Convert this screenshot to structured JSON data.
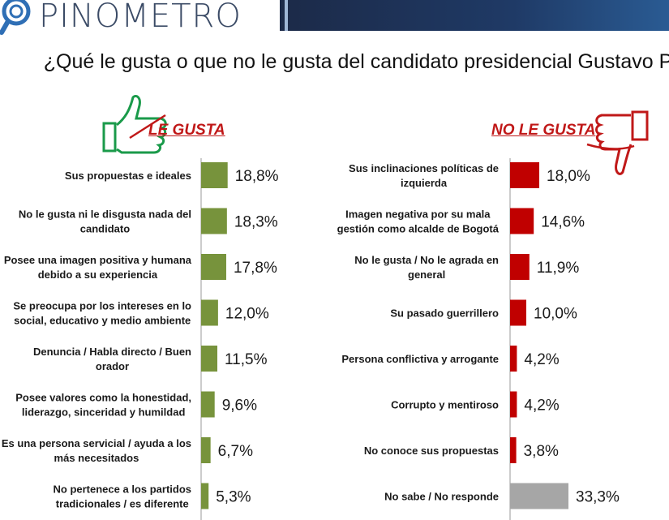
{
  "logo": {
    "text": "PINOMETRO",
    "icon": "magnifier-icon"
  },
  "title": "¿Qué le gusta o que no le gusta del candidato presidencial Gustavo Petro?",
  "headers": {
    "left": "LE GUSTA",
    "right": "NO LE GUSTA"
  },
  "colors": {
    "left_bar": "#77933c",
    "right_bar": "#c00000",
    "no_response_bar": "#a6a6a6",
    "header": "#c01818",
    "thumb_up": "#1a9a4a",
    "thumb_down": "#c01818"
  },
  "chart_data": [
    {
      "type": "bar",
      "orientation": "horizontal",
      "title": "LE GUSTA",
      "unit": "%",
      "categories": [
        [
          "Sus propuestas e ideales"
        ],
        [
          "No le gusta ni le disgusta nada del",
          "candidato"
        ],
        [
          "Posee una imagen positiva y humana",
          "debido a su experiencia"
        ],
        [
          "Se preocupa por los intereses en lo",
          "social, educativo y medio ambiente"
        ],
        [
          "Denuncia / Habla directo / Buen",
          "orador"
        ],
        [
          "Posee valores como la honestidad,",
          "liderazgo, sinceridad y humildad"
        ],
        [
          "Es una persona servicial / ayuda a los",
          "más necesitados"
        ],
        [
          "No pertenece a los partidos",
          "tradicionales / es diferente"
        ]
      ],
      "values": [
        18.8,
        18.3,
        17.8,
        12.0,
        11.5,
        9.6,
        6.7,
        5.3
      ],
      "labels": [
        "18,8%",
        "18,3%",
        "17,8%",
        "12,0%",
        "11,5%",
        "9,6%",
        "6,7%",
        "5,3%"
      ]
    },
    {
      "type": "bar",
      "orientation": "horizontal",
      "title": "NO LE GUSTA",
      "unit": "%",
      "categories": [
        [
          "Sus inclinaciones políticas de",
          "izquierda"
        ],
        [
          "Imagen negativa por su mala",
          "gestión como alcalde de Bogotá"
        ],
        [
          "No le gusta / No le agrada en",
          "general"
        ],
        [
          "Su pasado guerrillero"
        ],
        [
          "Persona conflictiva y arrogante"
        ],
        [
          "Corrupto y mentiroso"
        ],
        [
          "No conoce sus propuestas"
        ],
        [
          "No sabe / No responde"
        ]
      ],
      "values": [
        18.0,
        14.6,
        11.9,
        10.0,
        4.2,
        4.2,
        3.8,
        33.3
      ],
      "labels": [
        "18,0%",
        "14,6%",
        "11,9%",
        "10,0%",
        "4,2%",
        "4,2%",
        "3,8%",
        "33,3%"
      ]
    }
  ]
}
